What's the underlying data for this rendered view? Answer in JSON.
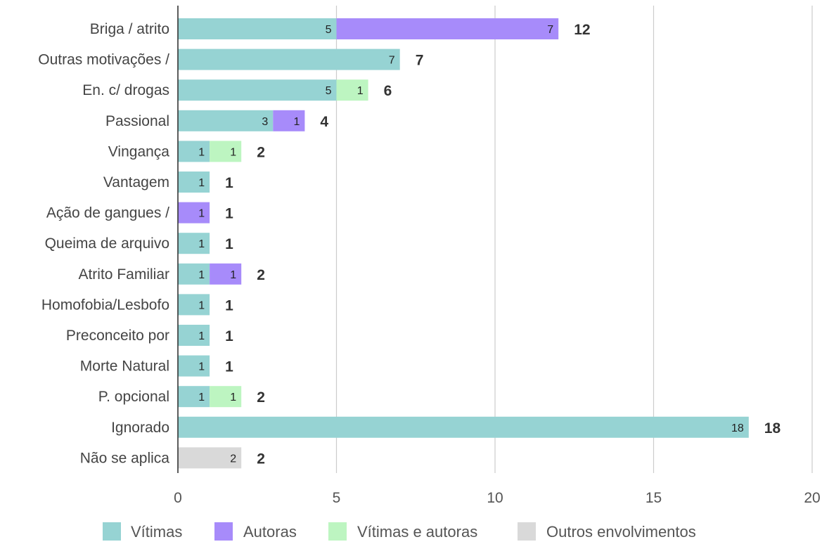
{
  "chart_data": {
    "type": "bar",
    "orientation": "horizontal",
    "stacked": true,
    "title": "",
    "xlabel": "",
    "ylabel": "",
    "xlim": [
      0,
      20
    ],
    "x_ticks": [
      0,
      5,
      10,
      15,
      20
    ],
    "grid": true,
    "legend_position": "bottom",
    "categories": [
      "Briga / atrito",
      "Outras motivações /",
      "En. c/ drogas",
      "Passional",
      "Vingança",
      "Vantagem",
      "Ação de gangues /",
      "Queima de arquivo",
      "Atrito Familiar",
      "Homofobia/Lesbofo",
      "Preconceito por",
      "Morte Natural",
      "P. opcional",
      "Ignorado",
      "Não se aplica"
    ],
    "series": [
      {
        "name": "Vítimas",
        "color": "#96d3d3",
        "values": [
          5,
          7,
          5,
          3,
          1,
          1,
          0,
          1,
          1,
          1,
          1,
          1,
          1,
          18,
          0
        ]
      },
      {
        "name": "Autoras",
        "color": "#a78bfa",
        "values": [
          7,
          0,
          0,
          1,
          0,
          0,
          1,
          0,
          1,
          0,
          0,
          0,
          0,
          0,
          0
        ]
      },
      {
        "name": "Vítimas e autoras",
        "color": "#bdf5c1",
        "values": [
          0,
          0,
          1,
          0,
          1,
          0,
          0,
          0,
          0,
          0,
          0,
          0,
          1,
          0,
          0
        ]
      },
      {
        "name": "Outros envolvimentos",
        "color": "#d9d9d9",
        "values": [
          0,
          0,
          0,
          0,
          0,
          0,
          0,
          0,
          0,
          0,
          0,
          0,
          0,
          0,
          2
        ]
      }
    ],
    "totals": [
      12,
      7,
      6,
      4,
      2,
      1,
      1,
      1,
      2,
      1,
      1,
      1,
      2,
      18,
      2
    ]
  }
}
